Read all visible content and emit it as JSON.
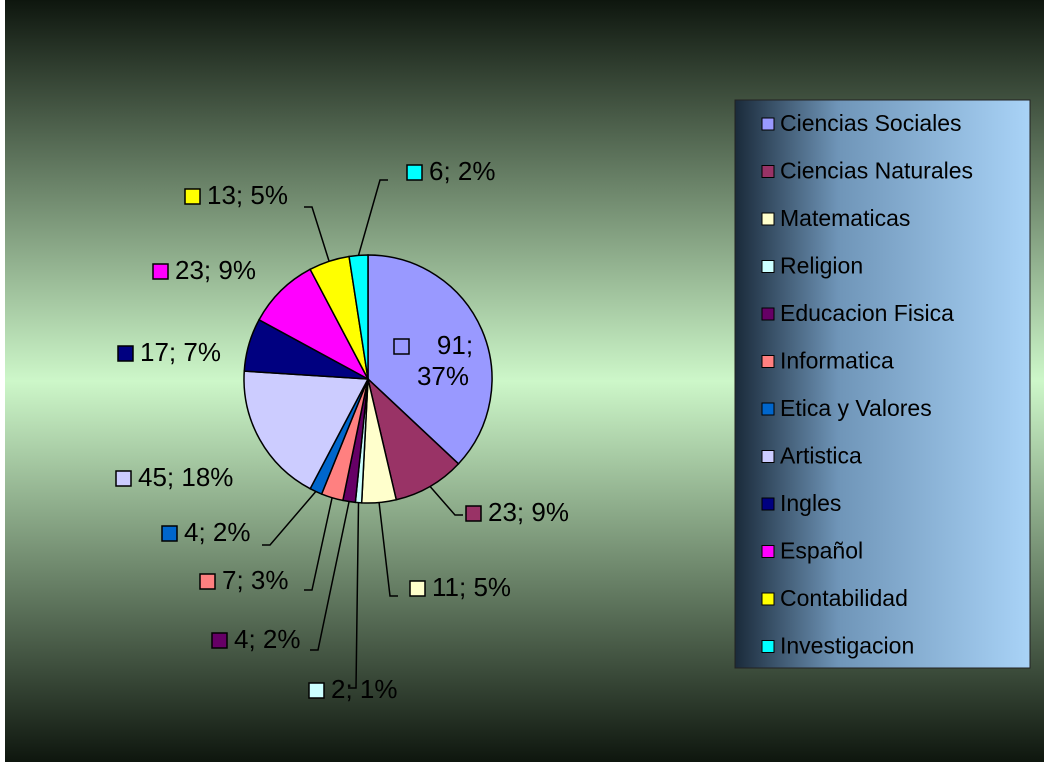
{
  "chart_data": {
    "type": "pie",
    "categories": [
      "Ciencias Sociales",
      "Ciencias Naturales",
      "Matematicas",
      "Religion",
      "Educacion Fisica",
      "Informatica",
      "Etica y Valores",
      "Artistica",
      "Ingles",
      "Español",
      "Contabilidad",
      "Investigacion"
    ],
    "values": [
      91,
      23,
      11,
      2,
      4,
      7,
      4,
      45,
      17,
      23,
      13,
      6
    ],
    "value_labels": [
      "91; 37%",
      "23; 9%",
      "11; 5%",
      "2; 1%",
      "4; 2%",
      "7; 3%",
      "4; 2%",
      "45; 18%",
      "17; 7%",
      "23; 9%",
      "13; 5%",
      "6; 2%"
    ],
    "colors": [
      "#9999ff",
      "#993366",
      "#ffffcc",
      "#ccffff",
      "#660066",
      "#ff8080",
      "#0066cc",
      "#ccccff",
      "#000080",
      "#ff00ff",
      "#ffff00",
      "#00ffff"
    ],
    "legend": "right"
  }
}
